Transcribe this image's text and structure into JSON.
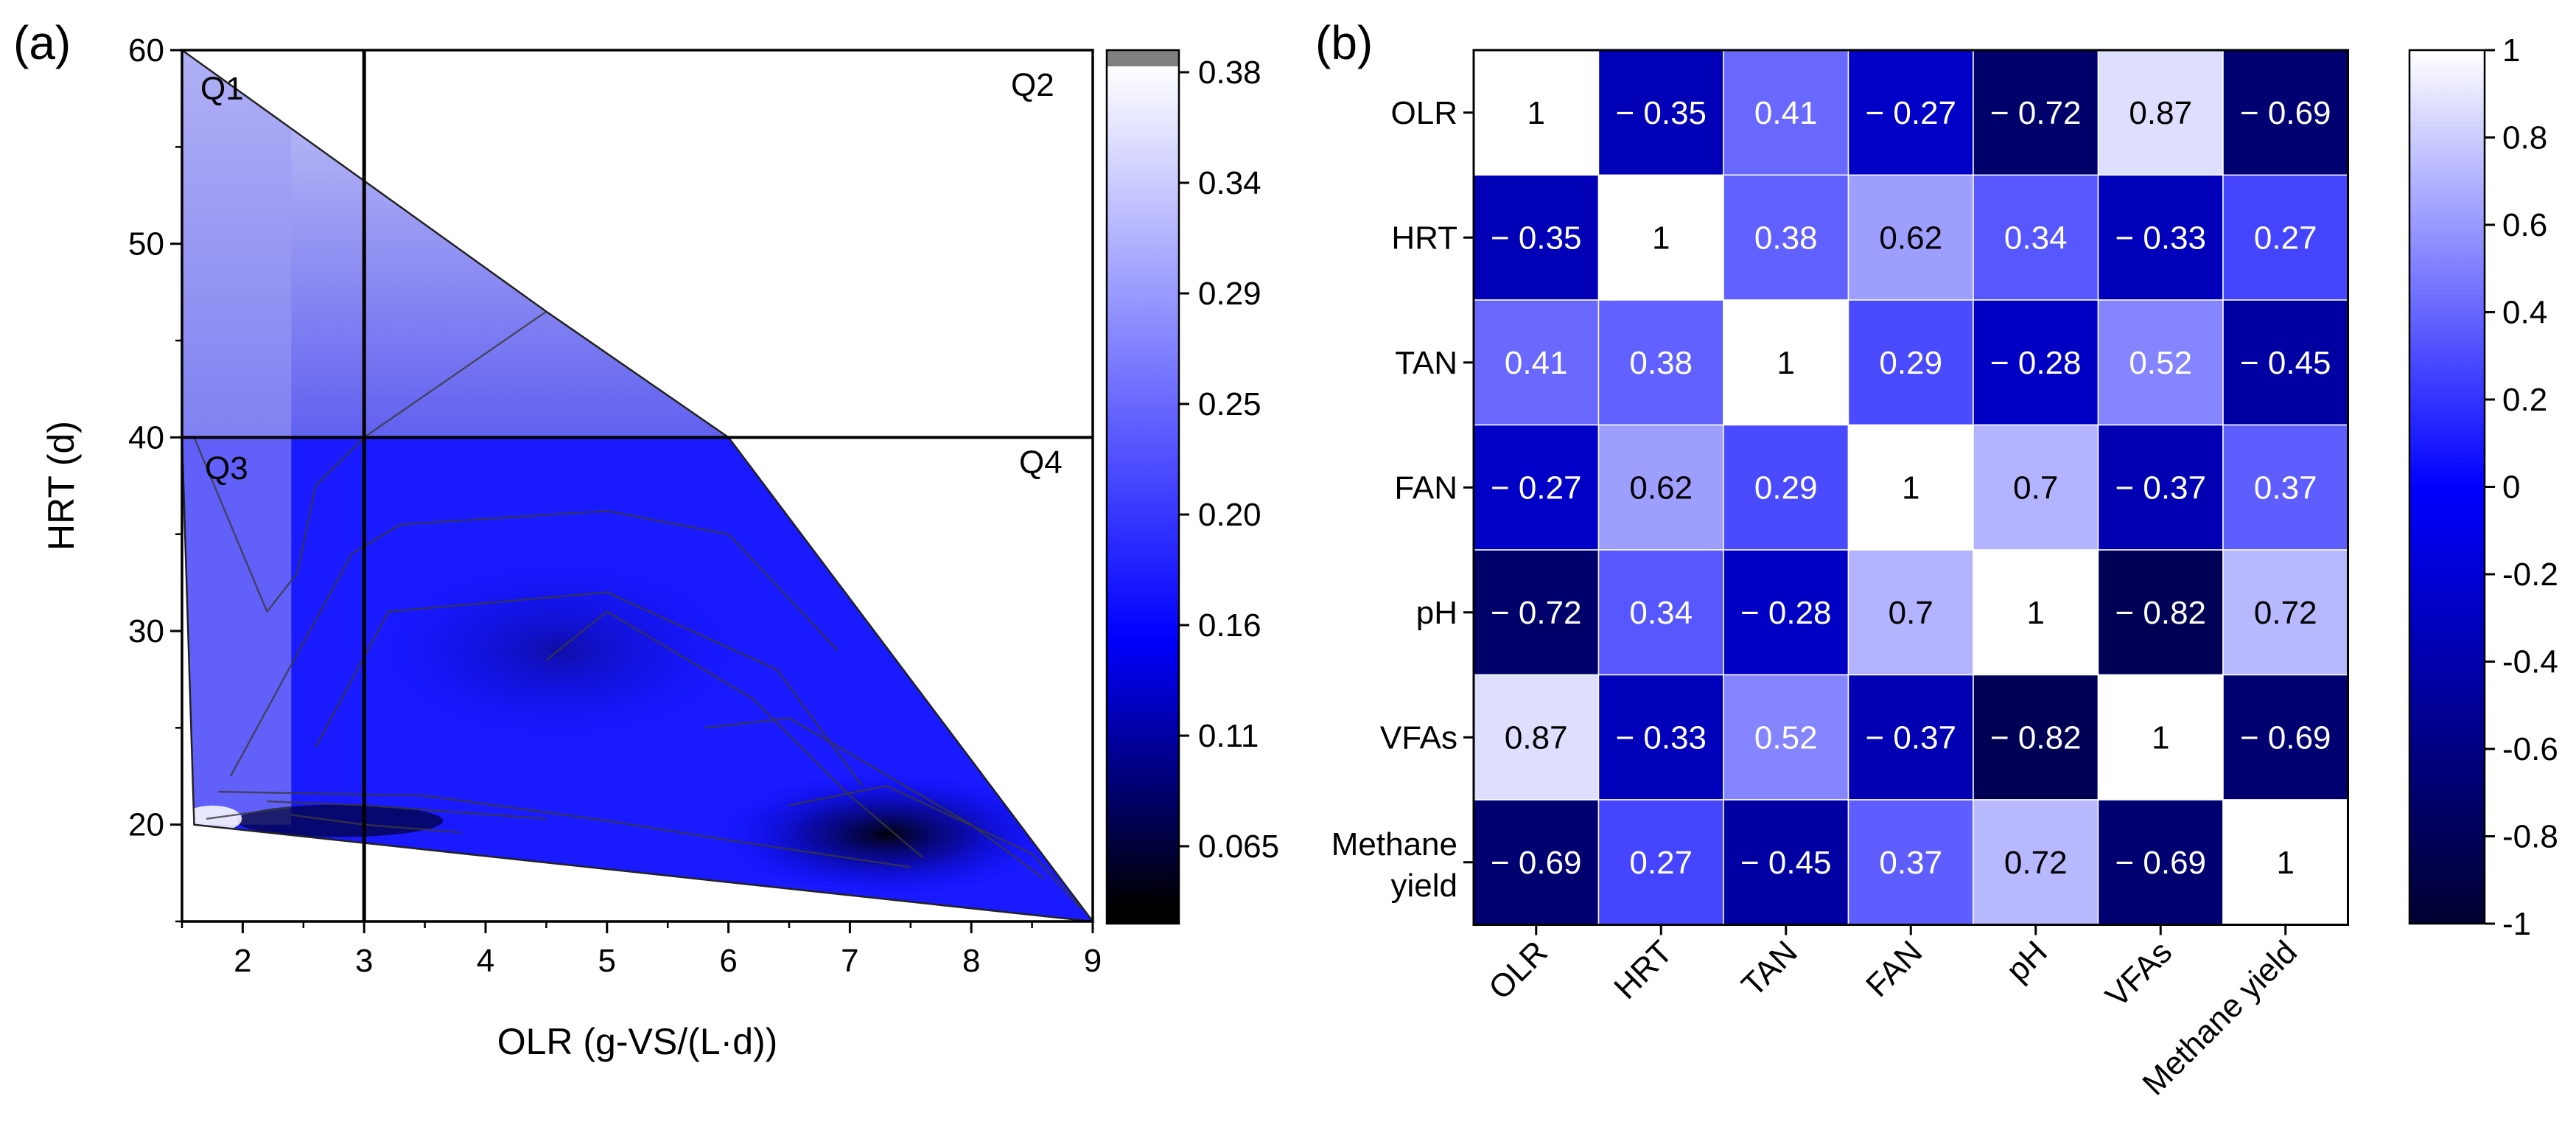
{
  "panels": {
    "a_label": "(a)",
    "b_label": "(b)"
  },
  "chart_data": [
    {
      "type": "contour",
      "panel": "(a)",
      "xlabel": "OLR (g-VS/(L·d))",
      "ylabel": "HRT (d)",
      "xlim": [
        1.5,
        9
      ],
      "ylim": [
        15,
        60
      ],
      "xticks": [
        2,
        3,
        4,
        5,
        6,
        7,
        8,
        9
      ],
      "yticks": [
        20,
        30,
        40,
        50,
        60
      ],
      "divider_x": 3,
      "divider_y": 40,
      "quadrants": [
        "Q1",
        "Q2",
        "Q3",
        "Q4"
      ],
      "region_polygon": [
        [
          1.5,
          60
        ],
        [
          4.5,
          46.5
        ],
        [
          6,
          40
        ],
        [
          9,
          15
        ],
        [
          1.6,
          20
        ],
        [
          1.5,
          40
        ]
      ],
      "colorbar": {
        "ticks": [
          "0.38",
          "0.34",
          "0.29",
          "0.25",
          "0.20",
          "0.16",
          "0.11",
          "0.065"
        ],
        "range": [
          0.02,
          0.38
        ],
        "colors": [
          "#000000",
          "#0000ff",
          "#ffffff"
        ]
      },
      "grid": false,
      "legend": "colorbar-right"
    },
    {
      "type": "heatmap",
      "panel": "(b)",
      "labels": [
        "OLR",
        "HRT",
        "TAN",
        "FAN",
        "pH",
        "VFAs",
        "Methane yield"
      ],
      "row_labels": [
        [
          "OLR"
        ],
        [
          "HRT"
        ],
        [
          "TAN"
        ],
        [
          "FAN"
        ],
        [
          "pH"
        ],
        [
          "VFAs"
        ],
        [
          "Methane",
          "yield"
        ]
      ],
      "values": [
        [
          1,
          -0.35,
          0.41,
          -0.27,
          -0.72,
          0.87,
          -0.69
        ],
        [
          -0.35,
          1,
          0.38,
          0.62,
          0.34,
          -0.33,
          0.27
        ],
        [
          0.41,
          0.38,
          1,
          0.29,
          -0.28,
          0.52,
          -0.45
        ],
        [
          -0.27,
          0.62,
          0.29,
          1,
          0.7,
          -0.37,
          0.37
        ],
        [
          -0.72,
          0.34,
          -0.28,
          0.7,
          1,
          -0.82,
          0.72
        ],
        [
          0.87,
          -0.33,
          0.52,
          -0.37,
          -0.82,
          1,
          -0.69
        ],
        [
          -0.69,
          0.27,
          -0.45,
          0.37,
          0.72,
          -0.69,
          1
        ]
      ],
      "colorbar": {
        "ticks": [
          "1",
          "0.8",
          "0.6",
          "0.4",
          "0.2",
          "0",
          "-0.2",
          "-0.4",
          "-0.6",
          "-0.8",
          "-1"
        ],
        "range": [
          -1,
          1
        ],
        "colors": [
          "#000030",
          "#0000ff",
          "#ffffff"
        ]
      },
      "legend": "colorbar-right"
    }
  ]
}
